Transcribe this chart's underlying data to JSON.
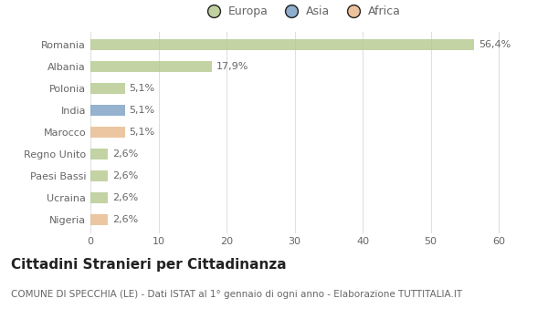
{
  "categories": [
    "Romania",
    "Albania",
    "Polonia",
    "India",
    "Marocco",
    "Regno Unito",
    "Paesi Bassi",
    "Ucraina",
    "Nigeria"
  ],
  "values": [
    56.4,
    17.9,
    5.1,
    5.1,
    5.1,
    2.6,
    2.6,
    2.6,
    2.6
  ],
  "labels": [
    "56,4%",
    "17,9%",
    "5,1%",
    "5,1%",
    "5,1%",
    "2,6%",
    "2,6%",
    "2,6%",
    "2,6%"
  ],
  "colors": [
    "#b5c98e",
    "#b5c98e",
    "#b5c98e",
    "#7b9fc4",
    "#e8b88a",
    "#b5c98e",
    "#b5c98e",
    "#b5c98e",
    "#e8b88a"
  ],
  "legend_labels": [
    "Europa",
    "Asia",
    "Africa"
  ],
  "legend_colors": [
    "#b5c98e",
    "#7b9fc4",
    "#e8b88a"
  ],
  "title": "Cittadini Stranieri per Cittadinanza",
  "subtitle": "COMUNE DI SPECCHIA (LE) - Dati ISTAT al 1° gennaio di ogni anno - Elaborazione TUTTITALIA.IT",
  "xlim": [
    0,
    62
  ],
  "xticks": [
    0,
    10,
    20,
    30,
    40,
    50,
    60
  ],
  "background_color": "#ffffff",
  "grid_color": "#e0e0e0",
  "bar_height": 0.5,
  "title_fontsize": 11,
  "subtitle_fontsize": 7.5,
  "label_fontsize": 8,
  "tick_fontsize": 8,
  "legend_fontsize": 9
}
